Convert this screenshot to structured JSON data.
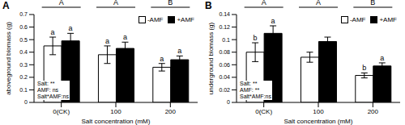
{
  "chart_data": [
    {
      "type": "bar",
      "panel": "A",
      "y_label": "aboveground biomass (g)",
      "x_label": "Salt concentration (mM)",
      "categories": [
        "0(CK)",
        "100",
        "200"
      ],
      "series": [
        {
          "name": "-AMF",
          "color": "#ffffff",
          "values": [
            0.45,
            0.38,
            0.28
          ],
          "errors": [
            0.07,
            0.07,
            0.03
          ],
          "letters": [
            "a",
            "a",
            "a"
          ]
        },
        {
          "name": "+AMF",
          "color": "#000000",
          "values": [
            0.49,
            0.43,
            0.34
          ],
          "errors": [
            0.06,
            0.05,
            0.03
          ],
          "letters": [
            "a",
            "a",
            "a"
          ]
        }
      ],
      "group_letters": [
        "A",
        "A",
        "B"
      ],
      "annotations": [
        "Salt: **",
        "AMF: ns",
        "Salt*AMF:ns"
      ],
      "ylim": [
        0,
        0.7
      ],
      "yticks": [
        0,
        0.1,
        0.2,
        0.3,
        0.4,
        0.5,
        0.6,
        0.7
      ],
      "grid": false,
      "legend": "upper right"
    },
    {
      "type": "bar",
      "panel": "B",
      "y_label": "underground biomass (g)",
      "x_label": "Salt concentration (mM)",
      "categories": [
        "0(CK)",
        "100",
        "200"
      ],
      "series": [
        {
          "name": "-AMF",
          "color": "#ffffff",
          "values": [
            0.08,
            0.072,
            0.043
          ],
          "errors": [
            0.015,
            0.008,
            0.004
          ],
          "letters": [
            "b",
            null,
            "b"
          ]
        },
        {
          "name": "+AMF",
          "color": "#000000",
          "values": [
            0.11,
            0.097,
            0.058
          ],
          "errors": [
            0.012,
            0.007,
            0.005
          ],
          "letters": [
            "a",
            null,
            "a"
          ]
        }
      ],
      "group_letters": [
        "A",
        "A",
        "B"
      ],
      "annotations": [
        "Salt: **",
        "AMF: **",
        "Salt*AMF:ns"
      ],
      "ylim": [
        0,
        0.14
      ],
      "yticks": [
        0,
        0.02,
        0.04,
        0.06,
        0.08,
        0.1,
        0.12,
        0.14
      ],
      "grid": false,
      "legend": "upper right"
    }
  ]
}
